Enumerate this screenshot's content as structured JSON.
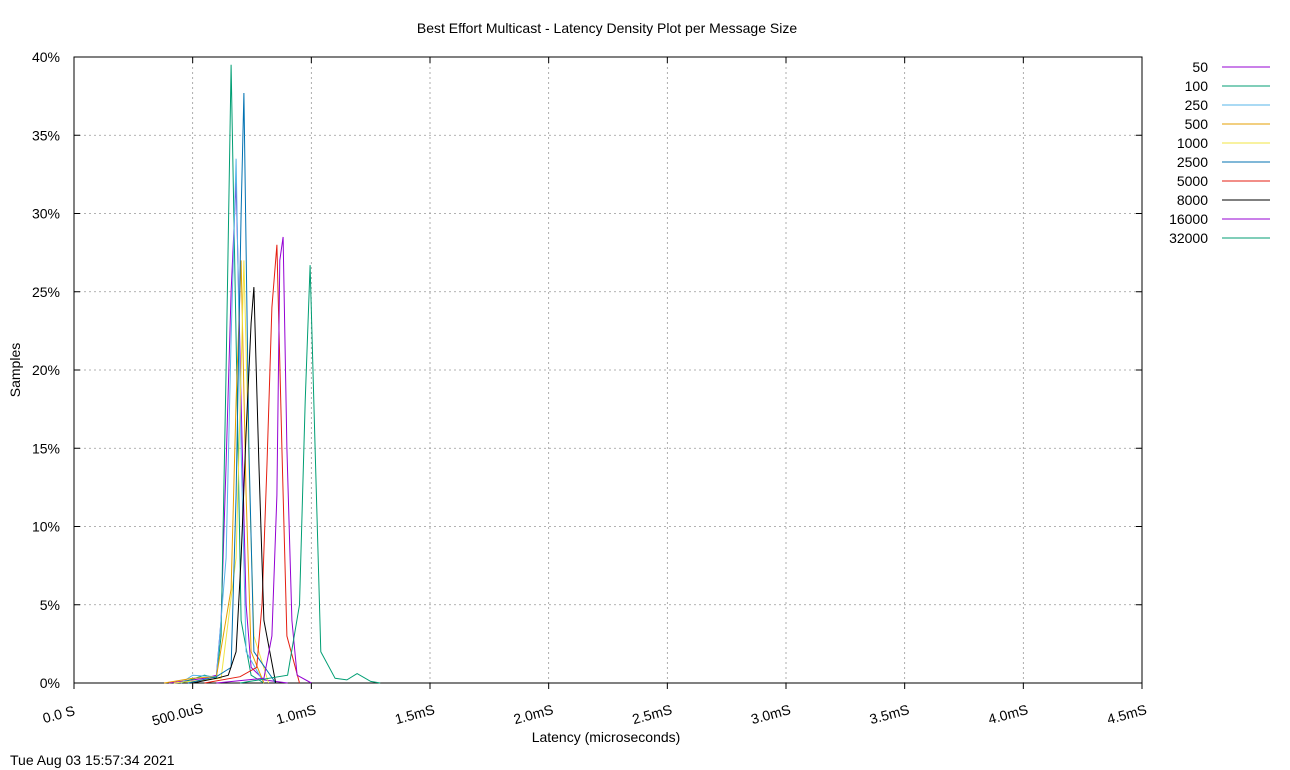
{
  "chart_data": {
    "type": "line",
    "title": "Best Effort Multicast - Latency Density Plot per Message Size",
    "x_label": "Latency (microseconds)",
    "y_label": "Samples",
    "timestamp": "Tue Aug 03 15:57:34 2021",
    "xlim": [
      0,
      4500
    ],
    "xticks": [
      {
        "value": 0,
        "label": "0.0 S"
      },
      {
        "value": 500,
        "label": "500.0uS"
      },
      {
        "value": 1000,
        "label": "1.0mS"
      },
      {
        "value": 1500,
        "label": "1.5mS"
      },
      {
        "value": 2000,
        "label": "2.0mS"
      },
      {
        "value": 2500,
        "label": "2.5mS"
      },
      {
        "value": 3000,
        "label": "3.0mS"
      },
      {
        "value": 3500,
        "label": "3.5mS"
      },
      {
        "value": 4000,
        "label": "4.0mS"
      },
      {
        "value": 4500,
        "label": "4.5mS"
      }
    ],
    "ylim": [
      0,
      40
    ],
    "yticks": [
      {
        "value": 0,
        "label": "0%"
      },
      {
        "value": 5,
        "label": "5%"
      },
      {
        "value": 10,
        "label": "10%"
      },
      {
        "value": 15,
        "label": "15%"
      },
      {
        "value": 20,
        "label": "20%"
      },
      {
        "value": 25,
        "label": "25%"
      },
      {
        "value": 30,
        "label": "30%"
      },
      {
        "value": 35,
        "label": "35%"
      },
      {
        "value": 40,
        "label": "40%"
      }
    ],
    "grid": true,
    "legend": "top-right",
    "series": [
      {
        "name": "50",
        "color": "#9400d3",
        "x": [
          400,
          500,
          550,
          600,
          620,
          641,
          662,
          683,
          704,
          725,
          746,
          800,
          900
        ],
        "values": [
          0,
          0.2,
          0.3,
          0.5,
          4,
          14,
          25,
          32,
          18,
          5,
          1,
          0.2,
          0
        ]
      },
      {
        "name": "100",
        "color": "#009e73",
        "x": [
          450,
          550,
          600,
          620,
          641,
          662,
          683,
          704,
          746,
          800
        ],
        "values": [
          0,
          0.5,
          0.3,
          3,
          20,
          39.5,
          22,
          4,
          0.5,
          0
        ]
      },
      {
        "name": "250",
        "color": "#56b4e9",
        "x": [
          450,
          500,
          600,
          641,
          662,
          683,
          704,
          725,
          800
        ],
        "values": [
          0,
          0.5,
          0.4,
          8,
          22,
          33.5,
          15,
          2,
          0
        ]
      },
      {
        "name": "500",
        "color": "#e69f00",
        "x": [
          380,
          500,
          600,
          662,
          683,
          704,
          725,
          746,
          800
        ],
        "values": [
          0,
          0.3,
          0.4,
          6,
          18,
          27,
          12,
          2,
          0
        ]
      },
      {
        "name": "1000",
        "color": "#f0e442",
        "x": [
          420,
          550,
          620,
          683,
          704,
          716,
          737,
          758,
          820
        ],
        "values": [
          0,
          0.2,
          0.3,
          8,
          20,
          27,
          14,
          3,
          0
        ]
      },
      {
        "name": "2500",
        "color": "#0072b2",
        "x": [
          480,
          600,
          662,
          683,
          704,
          716,
          737,
          758,
          850
        ],
        "values": [
          0,
          0.4,
          1,
          12,
          30,
          37.7,
          15,
          2,
          0
        ]
      },
      {
        "name": "5000",
        "color": "#e51e10",
        "x": [
          550,
          700,
          770,
          792,
          813,
          834,
          855,
          876,
          897,
          950
        ],
        "values": [
          0,
          0.4,
          1,
          5,
          14,
          24,
          28,
          15,
          3,
          0
        ]
      },
      {
        "name": "8000",
        "color": "#000000",
        "x": [
          500,
          600,
          650,
          683,
          704,
          725,
          746,
          758,
          779,
          800,
          850
        ],
        "values": [
          0,
          0.3,
          0.5,
          2,
          8,
          16,
          23,
          25.3,
          14,
          4,
          0
        ]
      },
      {
        "name": "16000",
        "color": "#9400d3",
        "x": [
          600,
          800,
          834,
          855,
          867,
          881,
          897,
          918,
          940,
          1000
        ],
        "values": [
          0,
          0.3,
          3,
          12,
          27,
          28.5,
          15,
          4,
          0.5,
          0
        ]
      },
      {
        "name": "32000",
        "color": "#009e73",
        "x": [
          700,
          900,
          950,
          974,
          995,
          1016,
          1040,
          1100,
          1150,
          1193,
          1250,
          1290
        ],
        "values": [
          0,
          0.5,
          5,
          18,
          26.7,
          15,
          2,
          0.3,
          0.2,
          0.6,
          0.1,
          0
        ]
      }
    ]
  }
}
